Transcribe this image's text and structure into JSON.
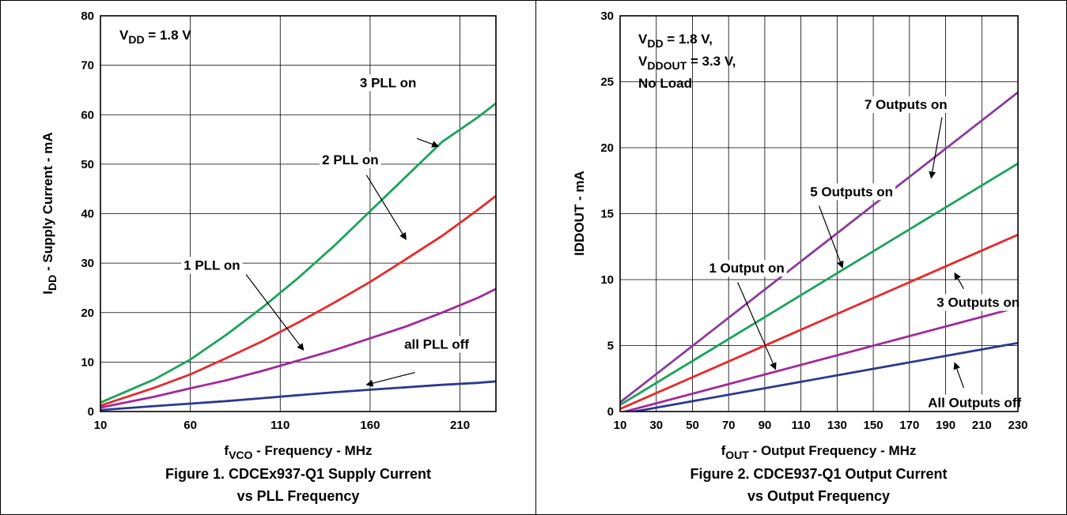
{
  "chart_data": [
    {
      "type": "line",
      "xlim": [
        10,
        230
      ],
      "ylim": [
        0,
        80
      ],
      "x_ticks": [
        10,
        60,
        110,
        160,
        210
      ],
      "y_ticks": [
        0,
        10,
        20,
        30,
        40,
        50,
        60,
        70,
        80
      ],
      "x_tick_labels": [
        "10",
        "60",
        "110",
        "160",
        "210"
      ],
      "y_tick_labels": [
        "0",
        "10",
        "20",
        "30",
        "40",
        "50",
        "60",
        "70",
        "80"
      ],
      "grid": true,
      "xlabel": {
        "main": "f",
        "sub": "VCO",
        "rest": " - Frequency - MHz"
      },
      "ylabel": {
        "main": "I",
        "sub": "DD",
        "rest": " - Supply Current - mA"
      },
      "condition_lines": [
        {
          "main": "V",
          "sub": "DD",
          "rest": " = 1.8 V"
        }
      ],
      "caption": [
        "Figure 1. CDCEx937-Q1 Supply Current",
        "vs PLL Frequency"
      ],
      "series": [
        {
          "name": "3 PLL on",
          "color": "#1aa35a",
          "x": [
            10,
            40,
            60,
            80,
            100,
            120,
            140,
            160,
            180,
            200,
            220,
            230
          ],
          "y": [
            1.8,
            6.5,
            10.5,
            15.5,
            21,
            27,
            33.5,
            40.5,
            47.5,
            54.5,
            59.5,
            62.3
          ]
        },
        {
          "name": "2 PLL on",
          "color": "#e8282a",
          "x": [
            10,
            40,
            60,
            80,
            100,
            120,
            140,
            160,
            180,
            200,
            220,
            230
          ],
          "y": [
            1.2,
            4.8,
            7.5,
            10.8,
            14.2,
            18,
            22,
            26.2,
            30.8,
            35.5,
            40.8,
            43.6
          ]
        },
        {
          "name": "1 PLL on",
          "color": "#a4279b",
          "x": [
            10,
            40,
            60,
            80,
            100,
            120,
            140,
            160,
            180,
            200,
            220,
            230
          ],
          "y": [
            0.8,
            3,
            4.7,
            6.3,
            8.2,
            10.3,
            12.4,
            14.8,
            17.2,
            20,
            23,
            24.8
          ]
        },
        {
          "name": "all PLL off",
          "color": "#2b3990",
          "x": [
            10,
            40,
            60,
            80,
            100,
            120,
            140,
            160,
            180,
            200,
            220,
            230
          ],
          "y": [
            0.3,
            1.1,
            1.6,
            2.1,
            2.7,
            3.3,
            3.9,
            4.4,
            4.9,
            5.4,
            5.8,
            6.1
          ]
        }
      ],
      "annotations": [
        {
          "text": "3 PLL on",
          "tx": 170,
          "ty": 66.3,
          "ax": 186,
          "ay": 55.2,
          "bx": 198,
          "by": 53.6
        },
        {
          "text": "2 PLL on",
          "tx": 149,
          "ty": 50.7,
          "ax": 158,
          "ay": 47.8,
          "bx": 180,
          "by": 34.8
        },
        {
          "text": "1 PLL on",
          "tx": 72,
          "ty": 29.4,
          "ax": 91,
          "ay": 27.7,
          "bx": 123,
          "by": 12.4
        },
        {
          "text": "all PLL off",
          "tx": 197,
          "ty": 13.4,
          "ax": 185,
          "ay": 7.9,
          "bx": 158,
          "by": 5.4
        }
      ]
    },
    {
      "type": "line",
      "xlim": [
        10,
        230
      ],
      "ylim": [
        0,
        30
      ],
      "x_ticks": [
        10,
        30,
        50,
        70,
        90,
        110,
        130,
        150,
        170,
        190,
        210,
        230
      ],
      "y_ticks": [
        0,
        5,
        10,
        15,
        20,
        25,
        30
      ],
      "x_tick_labels": [
        "10",
        "30",
        "50",
        "70",
        "90",
        "110",
        "130",
        "150",
        "170",
        "190",
        "210",
        "230"
      ],
      "y_tick_labels": [
        "0",
        "5",
        "10",
        "15",
        "20",
        "25",
        "30"
      ],
      "grid": true,
      "xlabel": {
        "main": "f",
        "sub": "OUT",
        "rest": " - Output Frequency - MHz"
      },
      "ylabel": {
        "main": "IDDOUT - mA",
        "sub": "",
        "rest": ""
      },
      "condition_lines": [
        {
          "main": "V",
          "sub": "DD",
          "rest": " = 1.8 V,"
        },
        {
          "main": "V",
          "sub": "DDOUT",
          "rest": " = 3.3 V,"
        },
        {
          "main": "No Load",
          "sub": "",
          "rest": ""
        }
      ],
      "caption": [
        "Figure 2. CDCE937-Q1 Output Current",
        "vs Output Frequency"
      ],
      "series": [
        {
          "name": "7 Outputs on",
          "color": "#8b3a9e",
          "x": [
            10,
            230
          ],
          "y": [
            0.7,
            24.2
          ]
        },
        {
          "name": "5 Outputs on",
          "color": "#1aa35a",
          "x": [
            10,
            230
          ],
          "y": [
            0.5,
            18.8
          ]
        },
        {
          "name": "3 Outputs on",
          "color": "#e8282a",
          "x": [
            10,
            230
          ],
          "y": [
            0.2,
            13.4
          ]
        },
        {
          "name": "1 Output on",
          "color": "#a4279b",
          "x": [
            10,
            230
          ],
          "y": [
            -0.1,
            7.9
          ]
        },
        {
          "name": "All Outputs off",
          "color": "#2b3990",
          "x": [
            10,
            230
          ],
          "y": [
            -0.2,
            5.2
          ]
        }
      ],
      "annotations": [
        {
          "text": "7 Outputs on",
          "tx": 168,
          "ty": 23.2,
          "ax": 188,
          "ay": 22.3,
          "bx": 182,
          "by": 17.7
        },
        {
          "text": "5 Outputs on",
          "tx": 138,
          "ty": 16.6,
          "ax": 120,
          "ay": 15.6,
          "bx": 133,
          "by": 10.9
        },
        {
          "text": "1 Output on",
          "tx": 80,
          "ty": 10.8,
          "ax": 75,
          "ay": 9.8,
          "bx": 96,
          "by": 3.2
        },
        {
          "text": "3 Outputs on",
          "tx": 208,
          "ty": 8.2,
          "ax": 200,
          "ay": 9.3,
          "bx": 195,
          "by": 10.5
        },
        {
          "text": "All Outputs off",
          "tx": 206,
          "ty": 0.6,
          "ax": 200,
          "ay": 1.8,
          "bx": 195,
          "by": 3.7
        }
      ]
    }
  ]
}
